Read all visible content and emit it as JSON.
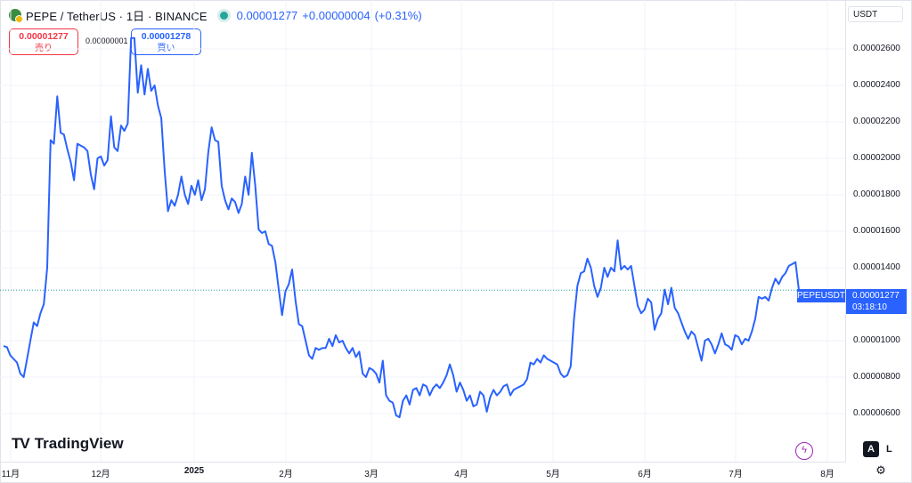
{
  "header": {
    "symbol": "PEPE / TetherUS · 1日 · BINANCE",
    "last_price": "0.00001277",
    "change": "+0.00000004",
    "change_pct": "(+0.31%)"
  },
  "trade": {
    "sell_price": "0.00001277",
    "sell_label": "売り",
    "spread": "0.00000001",
    "buy_price": "0.00001278",
    "buy_label": "買い"
  },
  "currency": "USDT",
  "y_ticks": [
    "0.00002600",
    "0.00002400",
    "0.00002200",
    "0.00002000",
    "0.00001800",
    "0.00001600",
    "0.00001400",
    "0.00001000",
    "0.00000800",
    "0.00000600"
  ],
  "x_ticks": [
    "11月",
    "12月",
    "2025",
    "2月",
    "3月",
    "4月",
    "5月",
    "6月",
    "7月",
    "8月"
  ],
  "symbol_tag": "PEPEUSDT",
  "price_tag": {
    "price": "0.00001277",
    "countdown": "03:18:10"
  },
  "branding": "TradingView",
  "controls": {
    "auto": "A",
    "log": "L"
  },
  "colors": {
    "line": "#2962ff",
    "up": "#26a69a",
    "sell": "#f23645"
  },
  "icons": [
    "tradingview-logo-icon",
    "flash-icon",
    "settings-gear-icon",
    "status-dot-icon"
  ],
  "chart_data": {
    "type": "line",
    "ylim": [
      5e-06,
      2.72e-05
    ],
    "current": 1.277e-05,
    "series": [
      {
        "values": [
          9.7e-06,
          9.65e-06,
          9.2e-06,
          9e-06,
          8.8e-06,
          8.2e-06,
          8e-06,
          9e-06,
          1e-05,
          1.1e-05,
          1.08e-05,
          1.15e-05,
          1.2e-05,
          1.4e-05,
          2.1e-05,
          2.08e-05,
          2.34e-05,
          2.14e-05,
          2.13e-05,
          2.05e-05,
          1.98e-05,
          1.88e-05,
          2.08e-05,
          2.07e-05,
          2.06e-05,
          2.04e-05,
          1.91e-05,
          1.83e-05,
          2e-05,
          2.01e-05,
          1.96e-05,
          1.99e-05,
          2.23e-05,
          2.06e-05,
          2.04e-05,
          2.18e-05,
          2.15e-05,
          2.19e-05,
          2.66e-05,
          2.66e-05,
          2.36e-05,
          2.51e-05,
          2.35e-05,
          2.49e-05,
          2.37e-05,
          2.4e-05,
          2.29e-05,
          2.22e-05,
          1.93e-05,
          1.71e-05,
          1.77e-05,
          1.74e-05,
          1.8e-05,
          1.9e-05,
          1.8e-05,
          1.75e-05,
          1.85e-05,
          1.8e-05,
          1.88e-05,
          1.77e-05,
          1.83e-05,
          2.03e-05,
          2.17e-05,
          2.1e-05,
          2.09e-05,
          1.85e-05,
          1.77e-05,
          1.72e-05,
          1.78e-05,
          1.76e-05,
          1.7e-05,
          1.75e-05,
          1.9e-05,
          1.8e-05,
          2.03e-05,
          1.85e-05,
          1.61e-05,
          1.59e-05,
          1.6e-05,
          1.53e-05,
          1.52e-05,
          1.43e-05,
          1.28e-05,
          1.14e-05,
          1.27e-05,
          1.31e-05,
          1.39e-05,
          1.22e-05,
          1.09e-05,
          1.08e-05,
          1e-05,
          9.2e-06,
          9e-06,
          9.6e-06,
          9.5e-06,
          9.6e-06,
          9.6e-06,
          1.01e-05,
          9.7e-06,
          1.03e-05,
          9.9e-06,
          1e-05,
          9.6e-06,
          9.3e-06,
          9.6e-06,
          9.1e-06,
          9.4e-06,
          8.2e-06,
          8e-06,
          8.5e-06,
          8.4e-06,
          8.2e-06,
          7.7e-06,
          8.9e-06,
          7e-06,
          6.7e-06,
          6.6e-06,
          5.9e-06,
          5.8e-06,
          6.7e-06,
          7e-06,
          6.5e-06,
          7.3e-06,
          7.4e-06,
          7e-06,
          7.6e-06,
          7.5e-06,
          7e-06,
          7.4e-06,
          7.6e-06,
          7.4e-06,
          7.7e-06,
          8.1e-06,
          8.7e-06,
          8.1e-06,
          7.2e-06,
          7.7e-06,
          7.3e-06,
          6.7e-06,
          7e-06,
          6.4e-06,
          6.5e-06,
          7.2e-06,
          7e-06,
          6.1e-06,
          6.9e-06,
          7.3e-06,
          7e-06,
          7.2e-06,
          7.5e-06,
          7.6e-06,
          7e-06,
          7.3e-06,
          7.4e-06,
          7.5e-06,
          7.6e-06,
          7.9e-06,
          8.8e-06,
          8.7e-06,
          9e-06,
          8.8e-06,
          9.2e-06,
          9e-06,
          8.9e-06,
          8.8e-06,
          8.7e-06,
          8.2e-06,
          8e-06,
          8.1e-06,
          8.6e-06,
          1.12e-05,
          1.3e-05,
          1.37e-05,
          1.38e-05,
          1.45e-05,
          1.4e-05,
          1.3e-05,
          1.24e-05,
          1.29e-05,
          1.4e-05,
          1.35e-05,
          1.4e-05,
          1.38e-05,
          1.55e-05,
          1.39e-05,
          1.41e-05,
          1.39e-05,
          1.41e-05,
          1.3e-05,
          1.19e-05,
          1.15e-05,
          1.17e-05,
          1.23e-05,
          1.21e-05,
          1.06e-05,
          1.12e-05,
          1.15e-05,
          1.28e-05,
          1.2e-05,
          1.29e-05,
          1.18e-05,
          1.15e-05,
          1.1e-05,
          1.05e-05,
          1.01e-05,
          1.05e-05,
          1.03e-05,
          9.6e-06,
          8.9e-06,
          1e-05,
          1.01e-05,
          9.8e-06,
          9.3e-06,
          9.8e-06,
          1.04e-05,
          9.8e-06,
          9.7e-06,
          9.5e-06,
          1.03e-05,
          1.02e-05,
          9.8e-06,
          1.01e-05,
          1e-05,
          1.05e-05,
          1.12e-05,
          1.24e-05,
          1.23e-05,
          1.24e-05,
          1.22e-05,
          1.29e-05,
          1.34e-05,
          1.31e-05,
          1.35e-05,
          1.37e-05,
          1.41e-05,
          1.42e-05,
          1.43e-05,
          1.277e-05
        ]
      }
    ]
  }
}
